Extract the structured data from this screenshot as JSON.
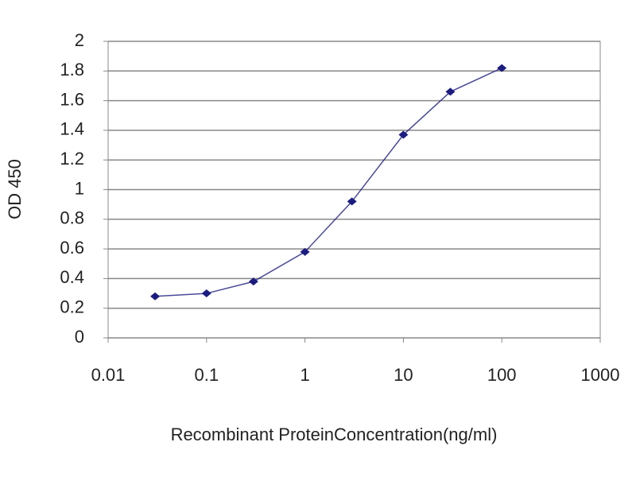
{
  "chart_data": {
    "type": "line",
    "x_label": "Recombinant ProteinConcentration(ng/ml)",
    "y_label": "OD 450",
    "series": [
      {
        "color": "#1c1c80",
        "x": [
          0.03,
          0.1,
          0.3,
          1,
          3,
          10,
          30,
          100
        ],
        "values": [
          0.28,
          0.3,
          0.38,
          0.58,
          0.92,
          1.37,
          1.66,
          1.82
        ]
      }
    ],
    "xscale": "log",
    "xlim": [
      0.01,
      1000
    ],
    "xticks": [
      0.01,
      0.1,
      1,
      10,
      100,
      1000
    ],
    "ylim": [
      0,
      2
    ],
    "yticks": [
      0,
      0.2,
      0.4,
      0.6,
      0.8,
      1,
      1.2,
      1.4,
      1.6,
      1.8,
      2
    ],
    "grid": true
  }
}
